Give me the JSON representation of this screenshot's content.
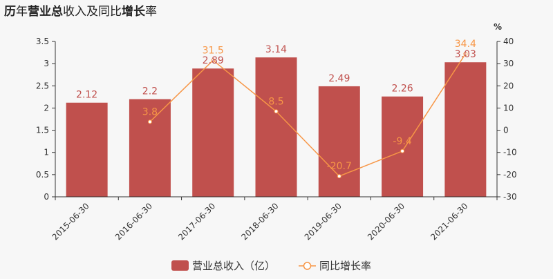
{
  "title": {
    "segments": [
      {
        "text": "历",
        "bold": true
      },
      {
        "text": "年",
        "bold": false
      },
      {
        "text": "营业总",
        "bold": true
      },
      {
        "text": "收入及同比",
        "bold": false
      },
      {
        "text": "增长",
        "bold": true
      },
      {
        "text": "率",
        "bold": false
      }
    ]
  },
  "chart_data": {
    "type": "bar",
    "categories": [
      "2015-06-30",
      "2016-06-30",
      "2017-06-30",
      "2018-06-30",
      "2019-06-30",
      "2020-06-30",
      "2021-06-30"
    ],
    "series": [
      {
        "name": "营业总收入（亿）",
        "type": "bar",
        "axis": "left",
        "values": [
          2.12,
          2.2,
          2.89,
          3.14,
          2.49,
          2.26,
          3.03
        ],
        "labels": [
          "2.12",
          "2.2",
          "2.89",
          "3.14",
          "2.49",
          "2.26",
          "3.03"
        ],
        "color": "#c0504d"
      },
      {
        "name": "同比增长率",
        "type": "line",
        "axis": "right",
        "values": [
          null,
          3.8,
          31.5,
          8.5,
          -20.7,
          -9.4,
          34.4
        ],
        "labels": [
          "",
          "3.8",
          "31.5",
          "8.5",
          "-20.7",
          "-9.4",
          "34.4"
        ],
        "color": "#f79646"
      }
    ],
    "y_left": {
      "min": 0,
      "max": 3.5,
      "ticks": [
        0,
        0.5,
        1,
        1.5,
        2,
        2.5,
        3,
        3.5
      ],
      "tick_labels": [
        "0",
        "0.5",
        "1",
        "1.5",
        "2",
        "2.5",
        "3",
        "3.5"
      ]
    },
    "y_right": {
      "min": -30,
      "max": 40,
      "ticks": [
        -30,
        -20,
        -10,
        0,
        10,
        20,
        30,
        40
      ],
      "tick_labels": [
        "-30",
        "-20",
        "-10",
        "0",
        "10",
        "20",
        "30",
        "40"
      ],
      "unit": "%"
    },
    "grid": false,
    "legend": "bottom-center"
  }
}
